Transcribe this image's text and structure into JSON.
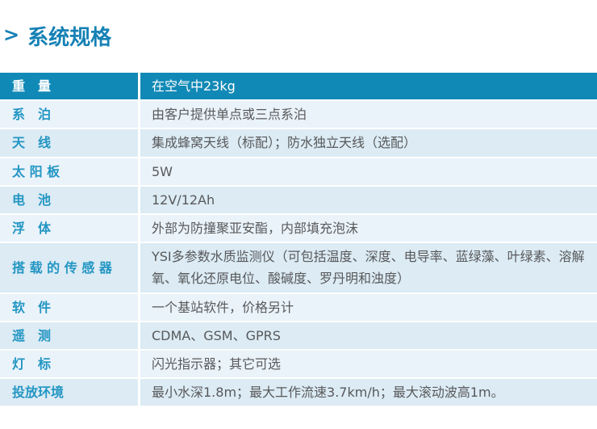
{
  "page": {
    "title": "系统规格",
    "title_arrow": ">"
  },
  "colors": {
    "header_bg": "#1189B6",
    "row_light": "#EAF3FA",
    "row_dark": "#DCEBF4",
    "label_blue": "#2396C3",
    "title_blue": "#1581B5",
    "value_gray": "#58595B"
  },
  "table": {
    "header": {
      "label": "重　量",
      "value": "在空气中23kg"
    },
    "rows": [
      {
        "label": "系　泊",
        "value": "由客户提供单点或三点系泊"
      },
      {
        "label": "天　线",
        "value": "集成蜂窝天线（标配）；防水独立天线（选配）"
      },
      {
        "label": "太 阳 板",
        "value": "5W"
      },
      {
        "label": "电　池",
        "value": "12V/12Ah"
      },
      {
        "label": "浮　体",
        "value": "外部为防撞聚亚安酯，内部填充泡沫"
      },
      {
        "label": "搭 载 的 传 感 器",
        "value": "YSI多参数水质监测仪（可包括温度、深度、电导率、蓝绿藻、叶绿素、溶解氧、氧化还原电位、酸碱度、罗丹明和浊度）"
      },
      {
        "label": "软　件",
        "value": "一个基站软件，价格另计"
      },
      {
        "label": "遥　测",
        "value": "CDMA、GSM、GPRS"
      },
      {
        "label": "灯　标",
        "value": "闪光指示器；其它可选"
      },
      {
        "label": "投放环境",
        "value": "最小水深1.8m；最大工作流速3.7km/h；最大滚动波高1m。"
      }
    ]
  }
}
